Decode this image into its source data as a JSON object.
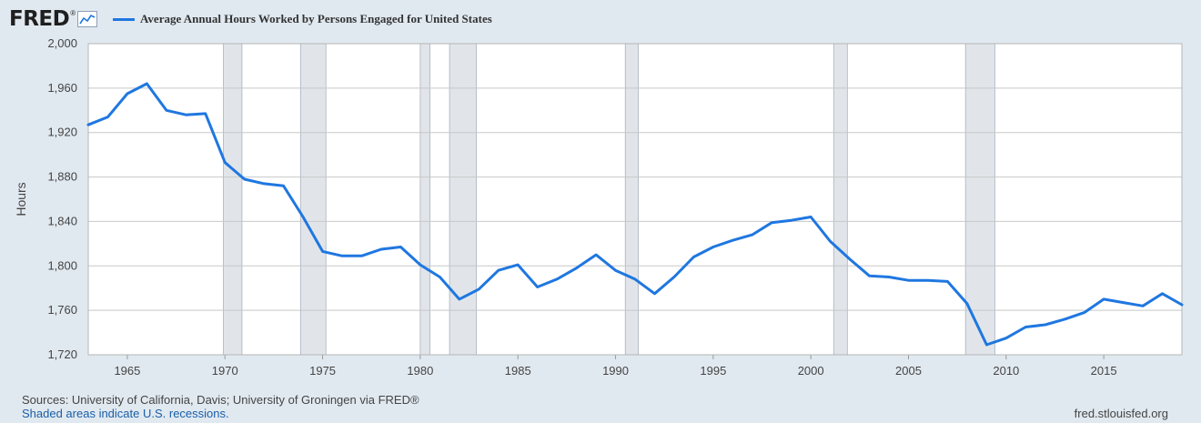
{
  "header": {
    "logo": "FRED",
    "logo_mark": "®",
    "logo_icon": "chart-line-icon",
    "series_label": "Average Annual Hours Worked by Persons Engaged for United States"
  },
  "footer": {
    "sources": "Sources: University of California, Davis; University of Groningen via FRED®",
    "recession_note": "Shaded areas indicate U.S. recessions.",
    "url": "fred.stlouisfed.org"
  },
  "colors": {
    "series": "#1f77e0",
    "recession": "#e1e5ea",
    "plot_bg": "#ffffff",
    "page_bg": "#e1e9f0",
    "grid": "#c8c8c8"
  },
  "chart_data": {
    "type": "line",
    "title": "Average Annual Hours Worked by Persons Engaged for United States",
    "xlabel": "",
    "ylabel": "Hours",
    "xlim": [
      1963,
      2019
    ],
    "ylim": [
      1720,
      2000
    ],
    "x_ticks": [
      1965,
      1970,
      1975,
      1980,
      1985,
      1990,
      1995,
      2000,
      2005,
      2010,
      2015
    ],
    "y_ticks": [
      1720,
      1760,
      1800,
      1840,
      1880,
      1920,
      1960,
      2000
    ],
    "y_tick_labels": [
      "1,720",
      "1,760",
      "1,800",
      "1,840",
      "1,880",
      "1,920",
      "1,960",
      "2,000"
    ],
    "grid": true,
    "recessions": [
      [
        1969.92,
        1970.87
      ],
      [
        1973.87,
        1975.17
      ],
      [
        1980.0,
        1980.5
      ],
      [
        1981.5,
        1982.87
      ],
      [
        1990.5,
        1991.17
      ],
      [
        2001.17,
        2001.87
      ],
      [
        2007.92,
        2009.42
      ]
    ],
    "series": [
      {
        "name": "Average Annual Hours Worked by Persons Engaged for United States",
        "x": [
          1963,
          1964,
          1965,
          1966,
          1967,
          1968,
          1969,
          1970,
          1971,
          1972,
          1973,
          1974,
          1975,
          1976,
          1977,
          1978,
          1979,
          1980,
          1981,
          1982,
          1983,
          1984,
          1985,
          1986,
          1987,
          1988,
          1989,
          1990,
          1991,
          1992,
          1993,
          1994,
          1995,
          1996,
          1997,
          1998,
          1999,
          2000,
          2001,
          2002,
          2003,
          2004,
          2005,
          2006,
          2007,
          2008,
          2009,
          2010,
          2011,
          2012,
          2013,
          2014,
          2015,
          2016,
          2017,
          2018,
          2019
        ],
        "values": [
          1927,
          1934,
          1955,
          1964,
          1940,
          1936,
          1937,
          1893,
          1878,
          1874,
          1872,
          1844,
          1813,
          1809,
          1809,
          1815,
          1817,
          1801,
          1790,
          1770,
          1779,
          1796,
          1801,
          1781,
          1788,
          1798,
          1810,
          1796,
          1788,
          1775,
          1790,
          1808,
          1817,
          1823,
          1828,
          1839,
          1841,
          1844,
          1822,
          1806,
          1791,
          1790,
          1787,
          1787,
          1786,
          1766,
          1729,
          1735,
          1745,
          1747,
          1752,
          1758,
          1770,
          1767,
          1764,
          1775,
          1765
        ]
      }
    ]
  }
}
